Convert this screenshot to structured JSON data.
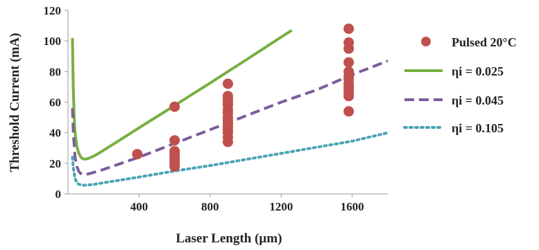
{
  "chart_data": {
    "type": "line",
    "title": "",
    "xlabel": "Laser Length (µm)",
    "ylabel": "Threshold Current (mA)",
    "xlim": [
      0,
      1800
    ],
    "ylim": [
      0,
      120
    ],
    "xticks": [
      "400",
      "800",
      "1200",
      "1600"
    ],
    "yticks": [
      "0",
      "20",
      "40",
      "60",
      "80",
      "100",
      "120"
    ],
    "grid": false,
    "legend_position": "right",
    "scatter": {
      "name": "Pulsed 20°C",
      "color": "#c0504d",
      "points": [
        [
          390,
          26
        ],
        [
          600,
          57
        ],
        [
          600,
          35
        ],
        [
          600,
          28
        ],
        [
          600,
          26
        ],
        [
          600,
          24
        ],
        [
          600,
          22
        ],
        [
          600,
          20
        ],
        [
          600,
          18
        ],
        [
          900,
          72
        ],
        [
          900,
          64
        ],
        [
          900,
          62
        ],
        [
          900,
          60
        ],
        [
          900,
          58
        ],
        [
          900,
          55
        ],
        [
          900,
          53
        ],
        [
          900,
          50
        ],
        [
          900,
          48
        ],
        [
          900,
          46
        ],
        [
          900,
          44
        ],
        [
          900,
          42
        ],
        [
          900,
          40
        ],
        [
          900,
          37
        ],
        [
          900,
          34
        ],
        [
          1580,
          108
        ],
        [
          1580,
          99
        ],
        [
          1580,
          95
        ],
        [
          1580,
          86
        ],
        [
          1580,
          80
        ],
        [
          1580,
          77
        ],
        [
          1580,
          75
        ],
        [
          1580,
          72
        ],
        [
          1580,
          70
        ],
        [
          1580,
          68
        ],
        [
          1580,
          66
        ],
        [
          1580,
          64
        ],
        [
          1580,
          54
        ]
      ]
    },
    "series": [
      {
        "name": "ηi = 0.025",
        "color": "#77b041",
        "style": "solid",
        "x": [
          25,
          30,
          35,
          40,
          50,
          60,
          70,
          80,
          90,
          100,
          120,
          150,
          200,
          300,
          400,
          500,
          600,
          700,
          800,
          900,
          1000,
          1100,
          1200,
          1260
        ],
        "y": [
          102,
          68,
          50,
          40,
          31,
          27,
          24.5,
          23.2,
          22.8,
          22.8,
          23.4,
          25,
          28.5,
          35.8,
          43.2,
          50.5,
          57.8,
          65.2,
          72.5,
          80,
          87.4,
          95,
          102.5,
          107
        ]
      },
      {
        "name": "ηi = 0.045",
        "color": "#7c5c9c",
        "style": "dashed",
        "x": [
          25,
          30,
          40,
          50,
          60,
          70,
          80,
          90,
          100,
          120,
          150,
          200,
          300,
          400,
          600,
          800,
          1000,
          1200,
          1400,
          1600,
          1800
        ],
        "y": [
          56,
          40,
          24,
          18,
          15,
          13.5,
          12.8,
          12.6,
          12.7,
          13.2,
          14.2,
          16,
          20,
          24,
          33,
          42,
          51,
          60,
          68,
          78,
          87
        ]
      },
      {
        "name": "ηi = 0.105",
        "color": "#4aa3b5",
        "style": "dotted",
        "x": [
          25,
          30,
          40,
          50,
          60,
          80,
          100,
          150,
          200,
          400,
          600,
          800,
          1000,
          1200,
          1400,
          1600,
          1800
        ],
        "y": [
          24,
          17,
          10,
          7.5,
          6.3,
          5.7,
          5.7,
          6.3,
          7.3,
          11,
          15,
          18.5,
          22.5,
          26.5,
          30.5,
          34.5,
          40
        ]
      }
    ]
  }
}
